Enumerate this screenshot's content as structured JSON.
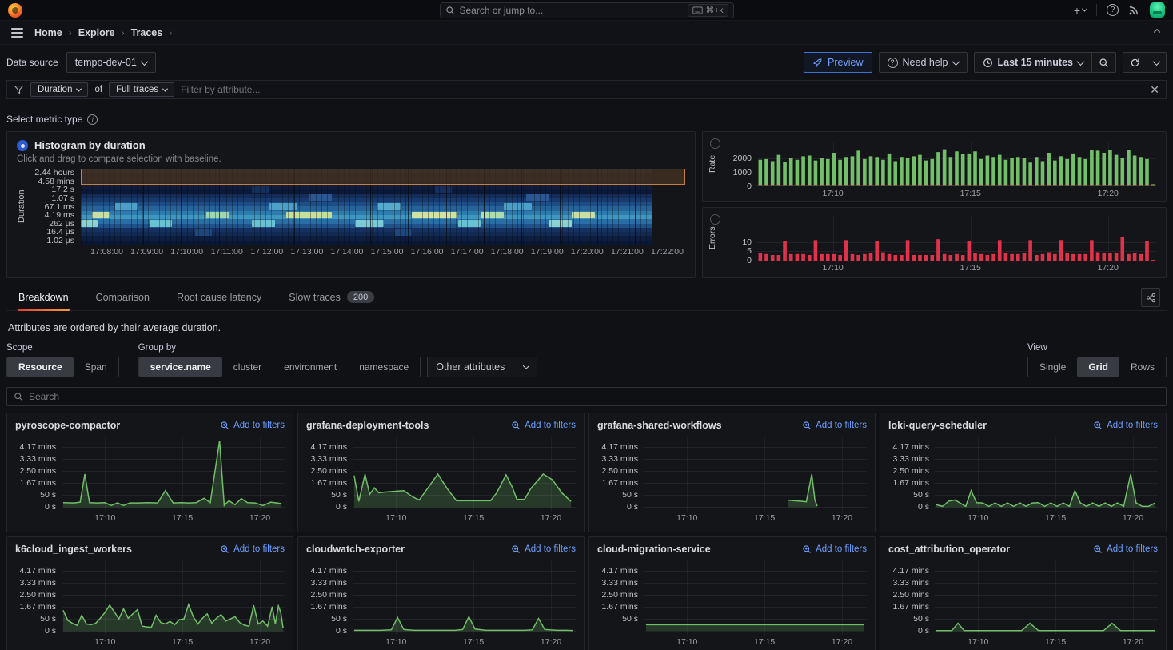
{
  "topnav": {
    "search_placeholder": "Search or jump to...",
    "shortcut": "⌘+k"
  },
  "breadcrumbs": [
    "Home",
    "Explore",
    "Traces"
  ],
  "toolbar": {
    "data_source_label": "Data source",
    "data_source_value": "tempo-dev-01",
    "preview_label": "Preview",
    "need_help_label": "Need help",
    "time_range_label": "Last 15 minutes"
  },
  "filterbar": {
    "duration_label": "Duration",
    "of_label": "of",
    "traces_label": "Full traces",
    "placeholder": "Filter by attribute..."
  },
  "metric_type_label": "Select metric type",
  "histogram": {
    "title": "Histogram by duration",
    "subtitle": "Click and drag to compare selection with baseline.",
    "ylabel": "Duration",
    "yticks": [
      "2.44 hours",
      "4.58 mins",
      "17.2 s",
      "1.07 s",
      "67.1 ms",
      "4.19 ms",
      "262 µs",
      "16.4 µs",
      "1.02 µs"
    ],
    "xticks": [
      "17:08:00",
      "17:09:00",
      "17:10:00",
      "17:11:00",
      "17:12:00",
      "17:13:00",
      "17:14:00",
      "17:15:00",
      "17:16:00",
      "17:17:00",
      "17:18:00",
      "17:19:00",
      "17:20:00",
      "17:21:00",
      "17:22:00"
    ],
    "x_domain": [
      7.35,
      22.45
    ],
    "rows": [
      {
        "label": "2.44 hours",
        "stripes": [
          "#181b22",
          "#14171d"
        ],
        "bands": []
      },
      {
        "label": "4.58 mins",
        "stripes": [
          "#151820",
          "#12151c"
        ],
        "bands": []
      },
      {
        "label": "17.2 s",
        "stripes": [
          "#0e1d40",
          "#0b1836"
        ],
        "bands": [
          [
            0.3,
            0.33,
            "#16305f"
          ],
          [
            0.62,
            0.65,
            "#16305f"
          ]
        ]
      },
      {
        "label": "1.07 s",
        "stripes": [
          "#132c58",
          "#183a6e"
        ],
        "bands": [
          [
            0.4,
            0.44,
            "#2a5a96"
          ],
          [
            0.78,
            0.82,
            "#2a5a96"
          ]
        ]
      },
      {
        "label": "67.1 ms",
        "stripes": [
          "#1d4d85",
          "#276399"
        ],
        "bands": [
          [
            0.06,
            0.1,
            "#4fa3c9"
          ],
          [
            0.33,
            0.38,
            "#4fa3c9"
          ],
          [
            0.52,
            0.56,
            "#58b0d0"
          ],
          [
            0.74,
            0.79,
            "#4fa3c9"
          ]
        ]
      },
      {
        "label": "4.19 ms",
        "stripes": [
          "#2e7cae",
          "#3f97bf"
        ],
        "bands": [
          [
            0.02,
            0.05,
            "#cfe3a2"
          ],
          [
            0.22,
            0.26,
            "#a8d9b0"
          ],
          [
            0.36,
            0.44,
            "#cde49a"
          ],
          [
            0.58,
            0.66,
            "#d9e8a0"
          ],
          [
            0.7,
            0.74,
            "#b7e0ad"
          ],
          [
            0.86,
            0.9,
            "#cfe3a2"
          ]
        ]
      },
      {
        "label": "262 µs",
        "stripes": [
          "#2a6ea6",
          "#1f5288"
        ],
        "bands": [
          [
            0.0,
            0.03,
            "#8fd8d2"
          ],
          [
            0.12,
            0.16,
            "#6cc7d4"
          ],
          [
            0.3,
            0.34,
            "#6cc7d4"
          ],
          [
            0.48,
            0.53,
            "#7fd0d8"
          ],
          [
            0.66,
            0.7,
            "#6cc7d4"
          ],
          [
            0.82,
            0.86,
            "#8fd8d2"
          ]
        ]
      },
      {
        "label": "16.4 µs",
        "stripes": [
          "#16305f",
          "#122a52"
        ],
        "bands": [
          [
            0.2,
            0.23,
            "#1f4a80"
          ],
          [
            0.55,
            0.58,
            "#1f4a80"
          ]
        ]
      },
      {
        "label": "1.02 µs",
        "stripes": [
          "#0c1d3f",
          "#0a1835"
        ],
        "bands": []
      }
    ]
  },
  "charts": {
    "rate": {
      "type": "bar",
      "ylabel": "Rate",
      "yticks": [
        0,
        1000,
        2000
      ],
      "ymax": 3200,
      "color": "#73bf69",
      "baseline": "#7a2b35",
      "domain": [
        7.25,
        21.75
      ],
      "xticks": [
        [
          10,
          "17:10"
        ],
        [
          15,
          "17:15"
        ],
        [
          20,
          "17:20"
        ]
      ],
      "values": [
        1900,
        1950,
        1800,
        2250,
        1750,
        2050,
        1900,
        2150,
        2200,
        1850,
        2000,
        1950,
        2400,
        1900,
        2100,
        2150,
        2550,
        1950,
        2150,
        2100,
        1900,
        2350,
        1800,
        2100,
        2050,
        2150,
        2250,
        1850,
        1950,
        2450,
        2650,
        2100,
        2500,
        2300,
        2350,
        2500,
        1950,
        2200,
        2100,
        2250,
        1900,
        2000,
        2100,
        2050,
        1700,
        2100,
        1800,
        2400,
        1850,
        2150,
        1950,
        2350,
        2100,
        1950,
        2600,
        2550,
        2400,
        2600,
        2250,
        2050,
        2600,
        2200,
        2100,
        1950,
        150
      ]
    },
    "errors": {
      "type": "bar",
      "ylabel": "Errors",
      "yticks": [
        0,
        5,
        10
      ],
      "ymax": 24,
      "color": "#e0334b",
      "domain": [
        7.25,
        21.75
      ],
      "xticks": [
        [
          10,
          "17:10"
        ],
        [
          15,
          "17:15"
        ],
        [
          20,
          "17:20"
        ]
      ],
      "values": [
        4,
        3.5,
        3,
        3,
        10.5,
        3.5,
        3.5,
        3.5,
        3,
        11,
        3.5,
        3.5,
        3.5,
        3,
        11,
        3.5,
        3,
        3.5,
        4,
        10.5,
        4.5,
        3.5,
        3,
        3,
        11,
        3,
        3,
        3,
        3,
        11.5,
        3.5,
        3,
        3.5,
        3,
        10.5,
        4,
        3.5,
        3,
        3.5,
        11,
        4,
        3.5,
        3.5,
        4,
        11,
        3,
        3.5,
        4.5,
        3.5,
        11,
        4,
        3.5,
        3.5,
        3.5,
        11,
        4.5,
        4,
        4,
        4,
        12.5,
        3.5,
        4,
        3.5,
        10.5,
        0.4
      ]
    }
  },
  "tabs": [
    {
      "label": "Breakdown",
      "active": true
    },
    {
      "label": "Comparison",
      "active": false
    },
    {
      "label": "Root cause latency",
      "active": false
    },
    {
      "label": "Slow traces",
      "active": false,
      "badge": "200"
    }
  ],
  "note": "Attributes are ordered by their average duration.",
  "controls": {
    "scope_label": "Scope",
    "scope_options": [
      "Resource",
      "Span"
    ],
    "scope_active": "Resource",
    "groupby_label": "Group by",
    "groupby_options": [
      "service.name",
      "cluster",
      "environment",
      "namespace"
    ],
    "groupby_active": "service.name",
    "other_attributes_label": "Other attributes",
    "view_label": "View",
    "view_options": [
      "Single",
      "Grid",
      "Rows"
    ],
    "view_active": "Grid"
  },
  "search": {
    "placeholder": "Search"
  },
  "add_to_filters_label": "Add to filters",
  "service_axis": {
    "yticks": [
      [
        "4.17 mins",
        4.1667
      ],
      [
        "3.33 mins",
        3.3333
      ],
      [
        "2.50 mins",
        2.5
      ],
      [
        "1.67 mins",
        1.6667
      ],
      [
        "50 s",
        0.8333
      ],
      [
        "0 s",
        0
      ]
    ],
    "ymin": -0.25,
    "ymax": 4.85,
    "domain": [
      7.2,
      21.6
    ],
    "xticks": [
      [
        10,
        "17:10"
      ],
      [
        15,
        "17:15"
      ],
      [
        20,
        "17:20"
      ]
    ],
    "line_color": "#73bf69"
  },
  "services": [
    {
      "name": "pyroscope-compactor",
      "points": [
        [
          7.3,
          0.32
        ],
        [
          8.0,
          0.3
        ],
        [
          8.4,
          0.35
        ],
        [
          8.7,
          2.3
        ],
        [
          9.0,
          0.32
        ],
        [
          9.5,
          0.3
        ],
        [
          10.0,
          0.32
        ],
        [
          10.4,
          0.12
        ],
        [
          10.8,
          0.3
        ],
        [
          11.2,
          0.12
        ],
        [
          11.6,
          0.3
        ],
        [
          12.2,
          0.3
        ],
        [
          12.8,
          0.32
        ],
        [
          13.4,
          0.3
        ],
        [
          13.9,
          1.15
        ],
        [
          14.4,
          0.3
        ],
        [
          14.9,
          0.32
        ],
        [
          15.4,
          0.3
        ],
        [
          15.9,
          0.32
        ],
        [
          16.4,
          0.62
        ],
        [
          16.8,
          0.32
        ],
        [
          17.4,
          4.62
        ],
        [
          17.7,
          0.12
        ],
        [
          18.0,
          0.45
        ],
        [
          18.4,
          0.18
        ],
        [
          18.8,
          0.6
        ],
        [
          19.2,
          0.32
        ],
        [
          19.7,
          0.3
        ],
        [
          20.2,
          0.12
        ],
        [
          20.7,
          0.35
        ],
        [
          21.1,
          0.3
        ],
        [
          21.4,
          0.25
        ]
      ]
    },
    {
      "name": "grafana-deployment-tools",
      "points": [
        [
          7.3,
          2.2
        ],
        [
          7.6,
          0.4
        ],
        [
          8.0,
          2.3
        ],
        [
          8.3,
          0.9
        ],
        [
          8.6,
          1.35
        ],
        [
          8.9,
          1.0
        ],
        [
          9.3,
          1.05
        ],
        [
          9.9,
          1.1
        ],
        [
          10.5,
          1.15
        ],
        [
          11.1,
          0.7
        ],
        [
          11.5,
          0.5
        ],
        [
          12.1,
          1.4
        ],
        [
          12.7,
          2.3
        ],
        [
          13.3,
          1.3
        ],
        [
          13.9,
          0.45
        ],
        [
          14.5,
          0.45
        ],
        [
          15.3,
          0.45
        ],
        [
          16.1,
          0.45
        ],
        [
          16.5,
          1.0
        ],
        [
          17.1,
          2.25
        ],
        [
          17.5,
          1.4
        ],
        [
          17.8,
          0.55
        ],
        [
          18.3,
          0.55
        ],
        [
          18.7,
          1.3
        ],
        [
          19.5,
          2.3
        ],
        [
          20.1,
          1.9
        ],
        [
          20.7,
          1.0
        ],
        [
          21.3,
          0.4
        ]
      ]
    },
    {
      "name": "grafana-shared-workflows",
      "points": [
        [
          16.5,
          0.5
        ],
        [
          16.9,
          0.45
        ],
        [
          17.3,
          0.42
        ],
        [
          17.7,
          0.38
        ],
        [
          18.05,
          2.3
        ],
        [
          18.25,
          0.5
        ],
        [
          18.4,
          0.08
        ]
      ]
    },
    {
      "name": "loki-query-scheduler",
      "points": [
        [
          7.3,
          0.18
        ],
        [
          7.7,
          0.06
        ],
        [
          8.1,
          0.42
        ],
        [
          8.5,
          0.5
        ],
        [
          8.8,
          0.32
        ],
        [
          9.2,
          0.06
        ],
        [
          9.55,
          1.15
        ],
        [
          9.9,
          0.32
        ],
        [
          10.3,
          0.3
        ],
        [
          10.7,
          0.06
        ],
        [
          11.1,
          0.3
        ],
        [
          11.5,
          0.06
        ],
        [
          11.9,
          0.3
        ],
        [
          12.3,
          0.06
        ],
        [
          12.7,
          0.3
        ],
        [
          13.1,
          0.06
        ],
        [
          13.5,
          0.3
        ],
        [
          13.9,
          0.32
        ],
        [
          14.3,
          0.06
        ],
        [
          14.7,
          0.3
        ],
        [
          15.1,
          0.06
        ],
        [
          15.5,
          0.3
        ],
        [
          15.9,
          0.06
        ],
        [
          16.25,
          1.15
        ],
        [
          16.6,
          0.3
        ],
        [
          17.0,
          0.06
        ],
        [
          17.4,
          0.3
        ],
        [
          17.8,
          0.06
        ],
        [
          18.2,
          0.3
        ],
        [
          18.6,
          0.06
        ],
        [
          19.0,
          0.3
        ],
        [
          19.4,
          0.06
        ],
        [
          19.85,
          2.3
        ],
        [
          20.2,
          0.3
        ],
        [
          20.6,
          0.06
        ],
        [
          21.0,
          0.06
        ],
        [
          21.4,
          0.28
        ]
      ]
    },
    {
      "name": "k6cloud_ingest_workers",
      "points": [
        [
          7.3,
          1.45
        ],
        [
          7.6,
          0.75
        ],
        [
          7.9,
          0.55
        ],
        [
          8.2,
          0.4
        ],
        [
          8.5,
          1.1
        ],
        [
          8.8,
          0.5
        ],
        [
          9.1,
          0.45
        ],
        [
          9.4,
          0.55
        ],
        [
          9.7,
          0.9
        ],
        [
          10.0,
          1.3
        ],
        [
          10.3,
          1.8
        ],
        [
          10.6,
          1.35
        ],
        [
          10.9,
          0.85
        ],
        [
          11.2,
          1.55
        ],
        [
          11.5,
          0.9
        ],
        [
          11.8,
          1.2
        ],
        [
          12.1,
          1.5
        ],
        [
          12.4,
          0.35
        ],
        [
          12.7,
          0.3
        ],
        [
          13.0,
          0.28
        ],
        [
          13.3,
          1.1
        ],
        [
          13.6,
          0.6
        ],
        [
          13.9,
          0.5
        ],
        [
          14.2,
          0.68
        ],
        [
          14.5,
          0.45
        ],
        [
          14.8,
          0.8
        ],
        [
          15.1,
          0.85
        ],
        [
          15.4,
          1.85
        ],
        [
          15.7,
          1.0
        ],
        [
          16.0,
          0.5
        ],
        [
          16.3,
          0.9
        ],
        [
          16.6,
          1.2
        ],
        [
          16.9,
          0.55
        ],
        [
          17.2,
          0.9
        ],
        [
          17.5,
          1.15
        ],
        [
          17.8,
          0.7
        ],
        [
          18.1,
          0.85
        ],
        [
          18.4,
          1.0
        ],
        [
          18.7,
          0.6
        ],
        [
          19.0,
          0.42
        ],
        [
          19.3,
          0.35
        ],
        [
          19.6,
          1.8
        ],
        [
          19.9,
          0.5
        ],
        [
          20.2,
          0.7
        ],
        [
          20.5,
          0.35
        ],
        [
          20.8,
          1.7
        ],
        [
          21.0,
          0.5
        ],
        [
          21.2,
          1.75
        ],
        [
          21.35,
          1.3
        ],
        [
          21.5,
          0.22
        ]
      ]
    },
    {
      "name": "cloudwatch-exporter",
      "points": [
        [
          7.3,
          0.06
        ],
        [
          8.2,
          0.06
        ],
        [
          9.0,
          0.06
        ],
        [
          9.7,
          0.1
        ],
        [
          10.1,
          0.95
        ],
        [
          10.5,
          0.12
        ],
        [
          11.2,
          0.06
        ],
        [
          12.0,
          0.06
        ],
        [
          13.0,
          0.06
        ],
        [
          13.8,
          0.06
        ],
        [
          14.3,
          0.12
        ],
        [
          14.7,
          1.0
        ],
        [
          15.1,
          0.15
        ],
        [
          15.8,
          0.06
        ],
        [
          16.6,
          0.06
        ],
        [
          17.5,
          0.06
        ],
        [
          18.3,
          0.06
        ],
        [
          18.8,
          0.1
        ],
        [
          19.2,
          0.88
        ],
        [
          19.6,
          0.12
        ],
        [
          20.4,
          0.06
        ],
        [
          21.0,
          0.06
        ],
        [
          21.4,
          0.05
        ]
      ]
    },
    {
      "name": "cloud-migration-service",
      "hide_zero_tick": true,
      "points": [
        [
          7.35,
          0.45
        ],
        [
          21.4,
          0.45
        ]
      ]
    },
    {
      "name": "cost_attribution_operator",
      "points": [
        [
          7.3,
          0.04
        ],
        [
          8.3,
          0.04
        ],
        [
          8.7,
          0.55
        ],
        [
          9.1,
          0.04
        ],
        [
          12.8,
          0.04
        ],
        [
          13.35,
          0.55
        ],
        [
          13.9,
          0.04
        ],
        [
          18.1,
          0.04
        ],
        [
          18.65,
          0.55
        ],
        [
          19.2,
          0.04
        ],
        [
          21.4,
          0.04
        ]
      ]
    }
  ]
}
